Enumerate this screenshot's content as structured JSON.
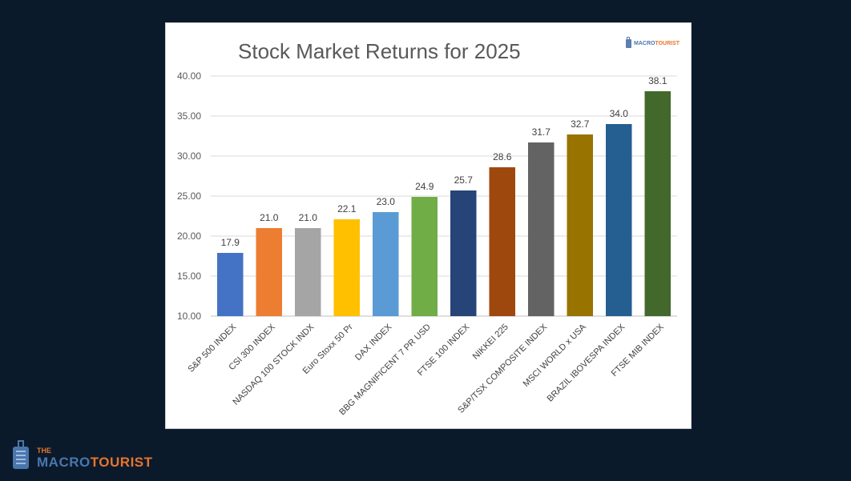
{
  "logo": {
    "the": "THE",
    "macro": "MACRO",
    "tourist": "TOURIST",
    "colors": {
      "macro": "#4a76ad",
      "tourist": "#e8742c"
    }
  },
  "chart_data": {
    "type": "bar",
    "title": "Stock Market Returns for 2025",
    "xlabel": "",
    "ylabel": "",
    "ylim": [
      10,
      40
    ],
    "yticks": [
      "10.00",
      "15.00",
      "20.00",
      "25.00",
      "30.00",
      "35.00",
      "40.00"
    ],
    "grid": true,
    "legend": "none",
    "categories": [
      "S&P 500 INDEX",
      "CSI 300 INDEX",
      "NASDAQ 100 STOCK INDX",
      "Euro Stoxx 50 Pr",
      "DAX INDEX",
      "BBG MAGNIFICENT 7 PR USD",
      "FTSE 100 INDEX",
      "NIKKEI 225",
      "S&P/TSX COMPOSITE INDEX",
      "MSCI WORLD x USA",
      "BRAZIL IBOVESPA INDEX",
      "FTSE MIB INDEX"
    ],
    "values": [
      17.9,
      21.0,
      21.0,
      22.1,
      23.0,
      24.9,
      25.7,
      28.6,
      31.7,
      32.7,
      34.0,
      38.1
    ],
    "data_labels": [
      "17.9",
      "21.0",
      "21.0",
      "22.1",
      "23.0",
      "24.9",
      "25.7",
      "28.6",
      "31.7",
      "32.7",
      "34.0",
      "38.1"
    ],
    "colors": [
      "#4472c4",
      "#ed7d31",
      "#a5a5a5",
      "#ffc000",
      "#5b9bd5",
      "#70ad47",
      "#264478",
      "#9e480e",
      "#636363",
      "#997300",
      "#255e91",
      "#43682b"
    ]
  }
}
